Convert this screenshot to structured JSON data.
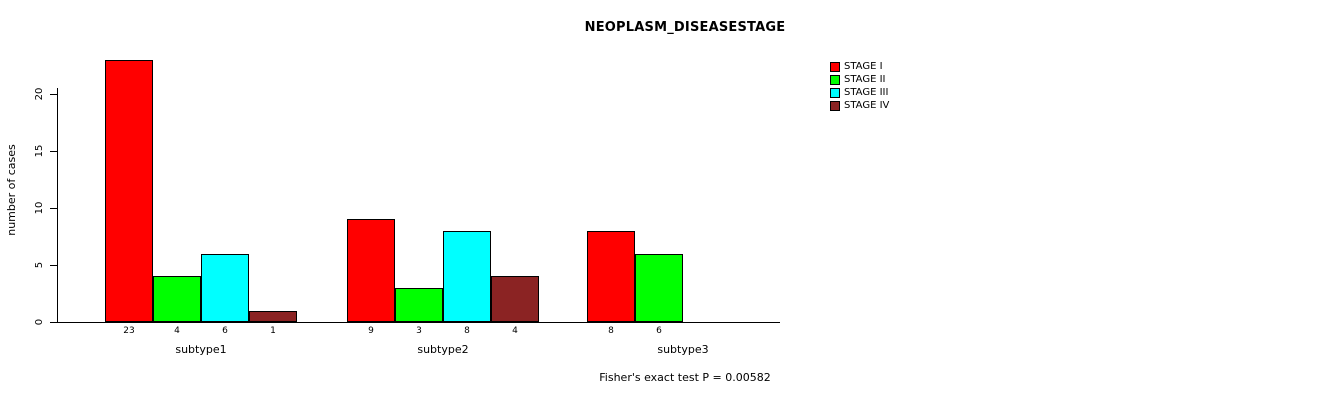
{
  "chart": {
    "title": "NEOPLASM_DISEASESTAGE",
    "ylabel": "number of cases",
    "footer": "Fisher's exact test P = 0.00582"
  },
  "chart_data": {
    "type": "bar",
    "title": "NEOPLASM_DISEASESTAGE",
    "xlabel": "",
    "ylabel": "number of cases",
    "categories": [
      "subtype1",
      "subtype2",
      "subtype3"
    ],
    "series": [
      {
        "name": "STAGE I",
        "color": "#ff0000",
        "values": [
          23,
          9,
          8
        ]
      },
      {
        "name": "STAGE II",
        "color": "#00ff00",
        "values": [
          4,
          3,
          6
        ]
      },
      {
        "name": "STAGE III",
        "color": "#00ffff",
        "values": [
          6,
          8,
          0
        ]
      },
      {
        "name": "STAGE IV",
        "color": "#8b2323",
        "values": [
          1,
          4,
          0
        ]
      }
    ],
    "bar_value_labels": [
      [
        23,
        4,
        6,
        1
      ],
      [
        9,
        3,
        8,
        4
      ],
      [
        8,
        6,
        null,
        null
      ]
    ],
    "yticks": [
      0,
      5,
      10,
      15,
      20
    ],
    "ylim": [
      0,
      23
    ],
    "grid": false,
    "legend_position": "top-right",
    "annotation": "Fisher's exact test P = 0.00582"
  }
}
